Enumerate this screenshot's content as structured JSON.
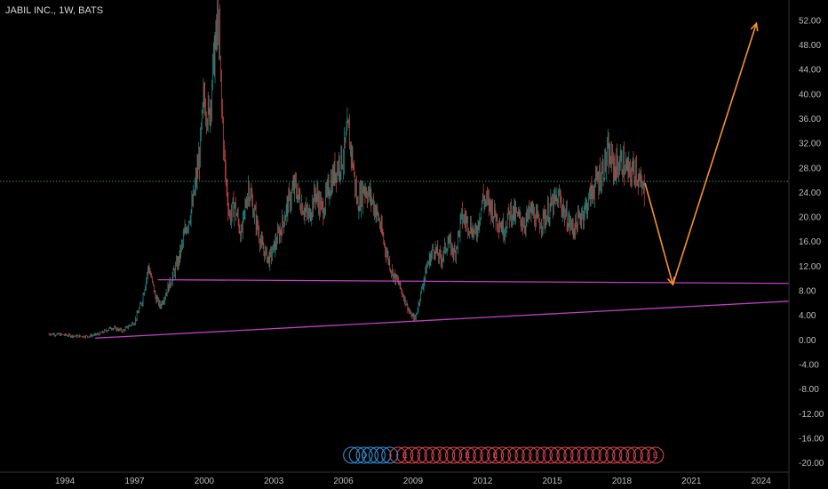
{
  "chart_data": {
    "type": "line",
    "title": "JABIL INC., 1W, BATS",
    "xlabel": "",
    "ylabel": "",
    "xlim": [
      1991.2,
      2025.2
    ],
    "ylim": [
      -21.5,
      55.3
    ],
    "grid": false,
    "x_ticks": [
      "1994",
      "1997",
      "2000",
      "2003",
      "2006",
      "2009",
      "2012",
      "2015",
      "2018",
      "2021",
      "2024"
    ],
    "y_ticks": [
      "52.00",
      "48.00",
      "44.00",
      "40.00",
      "36.00",
      "32.00",
      "28.00",
      "24.00",
      "20.00",
      "16.00",
      "12.00",
      "8.00",
      "4.00",
      "0.00",
      "-4.00",
      "-8.00",
      "-12.00",
      "-16.00",
      "-20.00"
    ],
    "series": [
      {
        "type": "candlestick",
        "x": [
          1993.3,
          1994.0,
          1994.5,
          1995.0,
          1995.5,
          1996.0,
          1996.5,
          1997.0,
          1997.3,
          1997.6,
          1997.9,
          1998.1,
          1998.5,
          1998.9,
          1999.2,
          1999.5,
          1999.8,
          2000.0,
          2000.2,
          2000.4,
          2000.6,
          2000.75,
          2000.9,
          2001.1,
          2001.3,
          2001.6,
          2001.9,
          2002.2,
          2002.5,
          2002.8,
          2003.0,
          2003.3,
          2003.6,
          2003.9,
          2004.2,
          2004.5,
          2004.8,
          2005.1,
          2005.4,
          2005.7,
          2006.0,
          2006.2,
          2006.4,
          2006.6,
          2006.9,
          2007.2,
          2007.5,
          2007.8,
          2008.1,
          2008.4,
          2008.7,
          2008.9,
          2009.1,
          2009.3,
          2009.6,
          2009.9,
          2010.2,
          2010.5,
          2010.8,
          2011.1,
          2011.4,
          2011.7,
          2012.0,
          2012.3,
          2012.6,
          2012.9,
          2013.2,
          2013.5,
          2013.8,
          2014.1,
          2014.4,
          2014.7,
          2015.0,
          2015.3,
          2015.6,
          2015.9,
          2016.2,
          2016.5,
          2016.8,
          2017.1,
          2017.4,
          2017.7,
          2018.0,
          2018.3,
          2018.6,
          2018.8,
          2019.0
        ],
        "close": [
          1.0,
          0.8,
          0.6,
          0.6,
          1.0,
          2.0,
          1.5,
          3.0,
          6.0,
          12.0,
          7.0,
          5.5,
          9.0,
          13.0,
          18.0,
          22.0,
          30.0,
          40.0,
          36.0,
          45.0,
          52.0,
          38.0,
          27.0,
          20.0,
          22.0,
          17.0,
          25.0,
          20.0,
          15.0,
          13.0,
          15.0,
          18.0,
          22.0,
          25.0,
          22.0,
          20.0,
          24.0,
          21.0,
          25.0,
          28.0,
          30.0,
          34.0,
          29.0,
          22.0,
          25.0,
          23.0,
          20.0,
          15.0,
          11.0,
          9.0,
          6.0,
          4.0,
          3.5,
          7.0,
          12.0,
          15.0,
          13.0,
          16.0,
          14.0,
          20.0,
          19.0,
          17.0,
          23.0,
          22.0,
          20.0,
          18.0,
          21.0,
          20.0,
          19.0,
          21.0,
          19.0,
          20.0,
          22.0,
          23.0,
          20.0,
          18.0,
          20.0,
          22.0,
          25.0,
          27.0,
          30.0,
          28.0,
          29.0,
          27.0,
          28.0,
          25.0,
          24.0
        ],
        "color_up": "#26a69a",
        "color_down": "#ef5350"
      },
      {
        "name": "",
        "type": "hline",
        "y": 25.8,
        "color": "#2e8b7a"
      },
      {
        "type": "trendline",
        "x": [
          1998.0,
          2025.2
        ],
        "y": [
          9.8,
          9.2
        ],
        "color": "#c040c0"
      },
      {
        "type": "trendline",
        "x": [
          1995.3,
          2025.2
        ],
        "y": [
          0.3,
          6.3
        ],
        "color": "#c040c0"
      },
      {
        "type": "projection",
        "x": [
          2019.0,
          2020.2,
          2023.8
        ],
        "y": [
          25.5,
          9.0,
          51.5
        ],
        "color": "#f5922c"
      }
    ],
    "events": {
      "dividends_text": "D",
      "earnings_text": "E",
      "dividends": [
        2006.35,
        2006.6,
        2006.9,
        2007.15,
        2007.45,
        2007.7,
        2008.0
      ],
      "earnings": [
        2008.35,
        2008.65,
        2008.95,
        2009.25,
        2009.55,
        2009.85,
        2010.15,
        2010.45,
        2010.75,
        2011.05,
        2011.35,
        2011.65,
        2011.95,
        2012.25,
        2012.55,
        2012.85,
        2013.15,
        2013.45,
        2013.75,
        2014.05,
        2014.35,
        2014.65,
        2014.95,
        2015.25,
        2015.55,
        2015.85,
        2016.15,
        2016.45,
        2016.75,
        2017.05,
        2017.35,
        2017.65,
        2017.95,
        2018.25,
        2018.55,
        2018.85,
        2019.15,
        2019.45
      ],
      "dividend_color": "#2f8fd8",
      "earnings_color": "#d8434f"
    }
  }
}
